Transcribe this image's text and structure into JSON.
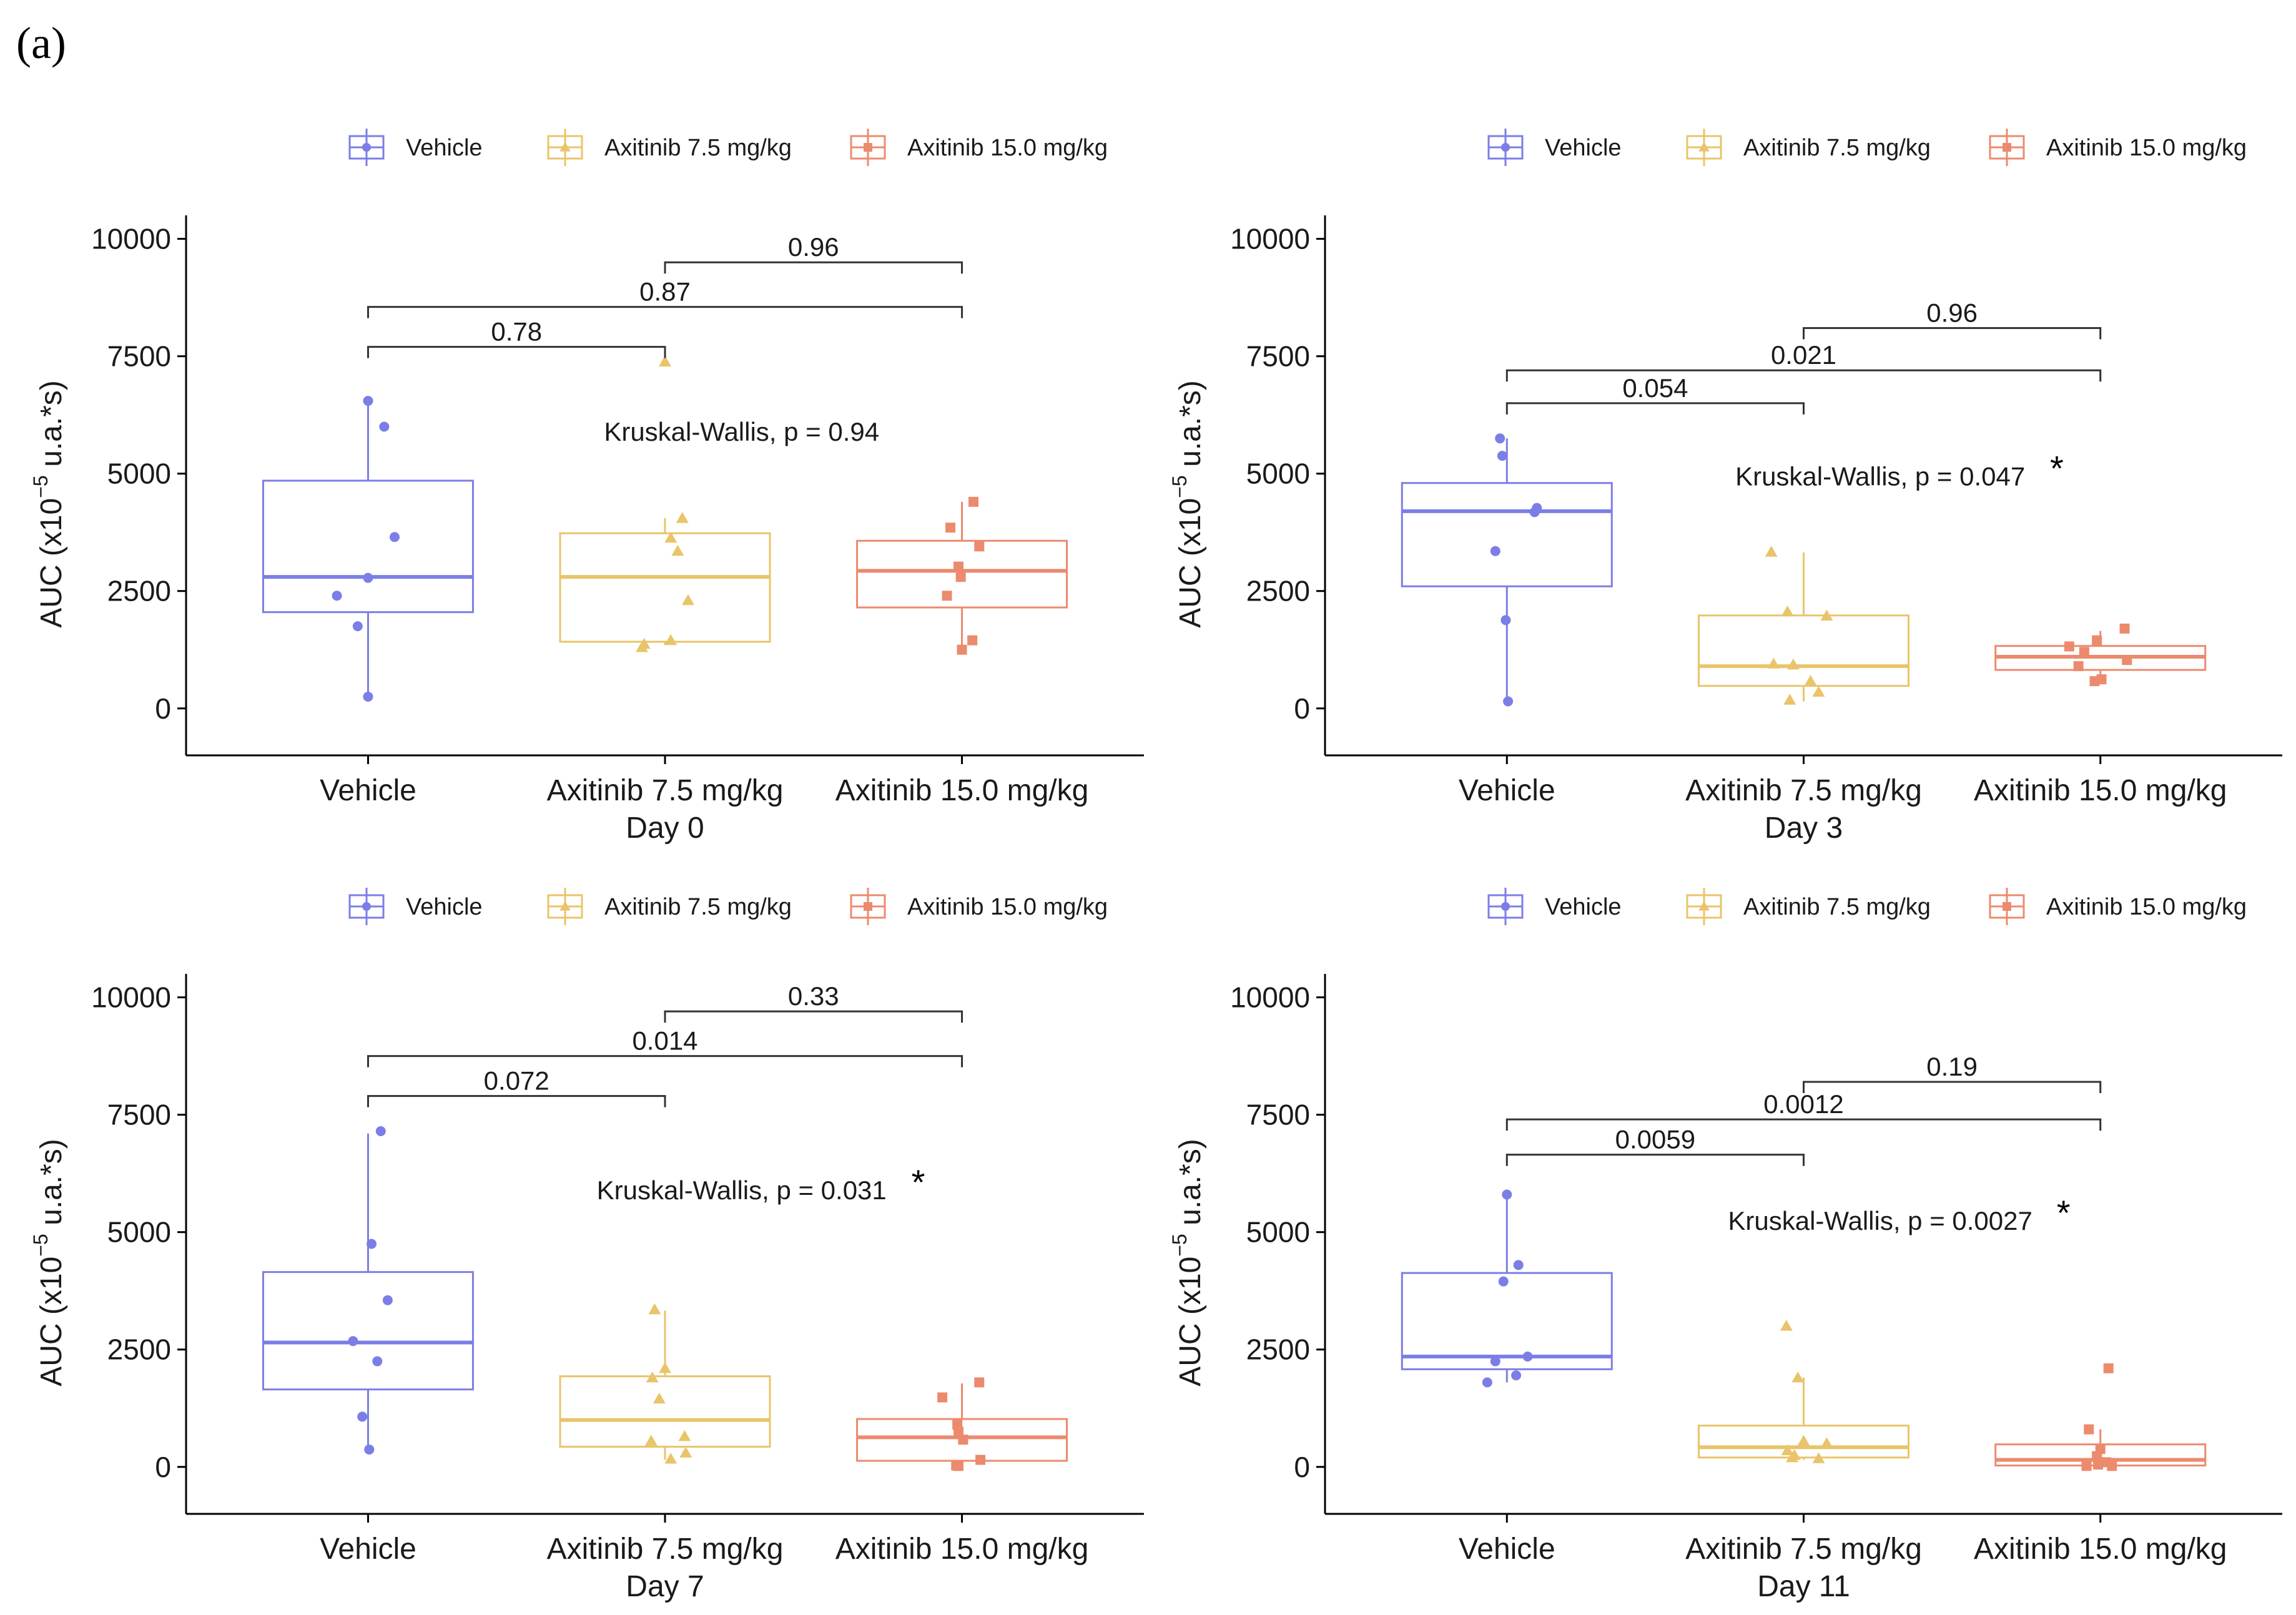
{
  "panel_label": "(a)",
  "legend": {
    "items": [
      {
        "label": "Vehicle",
        "color": "#7b7ee6",
        "shape": "circle"
      },
      {
        "label": "Axitinib 7.5 mg/kg",
        "color": "#e9c46a",
        "shape": "triangle"
      },
      {
        "label": "Axitinib 15.0 mg/kg",
        "color": "#ec8a6e",
        "shape": "square"
      }
    ]
  },
  "chart_data": [
    {
      "type": "boxplot",
      "title": "Day 0",
      "xlabel": "Day 0",
      "ylabel": "AUC (x10-5 u.a.*s)",
      "ylabel_base": "AUC (x10",
      "ylabel_exp": "−5",
      "ylabel_tail": " u.a.*s)",
      "ylim": [
        -1000,
        10500
      ],
      "yticks": [
        0,
        2500,
        5000,
        7500,
        10000
      ],
      "categories": [
        "Vehicle",
        "Axitinib 7.5 mg/kg",
        "Axitinib 15.0 mg/kg"
      ],
      "boxes": [
        {
          "q1": 2050,
          "median": 2800,
          "q3": 4850,
          "wmin": 250,
          "wmax": 6550
        },
        {
          "q1": 1420,
          "median": 2800,
          "q3": 3730,
          "wmin": 1350,
          "wmax": 4050
        },
        {
          "q1": 2150,
          "median": 2930,
          "q3": 3570,
          "wmin": 1250,
          "wmax": 4400
        }
      ],
      "points": [
        [
          [
            0.0,
            6550
          ],
          [
            0.14,
            6000
          ],
          [
            0.23,
            3650
          ],
          [
            0.0,
            2780
          ],
          [
            -0.27,
            2400
          ],
          [
            -0.09,
            1750
          ],
          [
            0.0,
            250
          ]
        ],
        [
          [
            0.0,
            7380
          ],
          [
            0.15,
            4050
          ],
          [
            0.05,
            3630
          ],
          [
            0.11,
            3350
          ],
          [
            0.2,
            2300
          ],
          [
            0.05,
            1450
          ],
          [
            -0.18,
            1370
          ],
          [
            -0.2,
            1300
          ]
        ],
        [
          [
            0.1,
            4400
          ],
          [
            -0.1,
            3850
          ],
          [
            0.15,
            3450
          ],
          [
            -0.03,
            3020
          ],
          [
            -0.01,
            2800
          ],
          [
            -0.13,
            2400
          ],
          [
            0.09,
            1450
          ],
          [
            0.0,
            1250
          ]
        ]
      ],
      "comparisons": [
        {
          "from": 0,
          "to": 1,
          "p": "0.78",
          "y": 7700
        },
        {
          "from": 0,
          "to": 2,
          "p": "0.87",
          "y": 8550
        },
        {
          "from": 1,
          "to": 2,
          "p": "0.96",
          "y": 9500
        }
      ],
      "kruskal": {
        "text": "Kruskal-Wallis, p = 0.94",
        "star": "",
        "y": 5700
      }
    },
    {
      "type": "boxplot",
      "title": "Day 3",
      "xlabel": "Day 3",
      "ylabel": "AUC (x10-5 u.a.*s)",
      "ylabel_base": "AUC (x10",
      "ylabel_exp": "−5",
      "ylabel_tail": " u.a.*s)",
      "ylim": [
        -1000,
        10500
      ],
      "yticks": [
        0,
        2500,
        5000,
        7500,
        10000
      ],
      "categories": [
        "Vehicle",
        "Axitinib 7.5 mg/kg",
        "Axitinib 15.0 mg/kg"
      ],
      "boxes": [
        {
          "q1": 2600,
          "median": 4200,
          "q3": 4800,
          "wmin": 150,
          "wmax": 5750
        },
        {
          "q1": 480,
          "median": 900,
          "q3": 1980,
          "wmin": 150,
          "wmax": 3320
        },
        {
          "q1": 820,
          "median": 1100,
          "q3": 1330,
          "wmin": 600,
          "wmax": 1650
        }
      ],
      "points": [
        [
          [
            -0.06,
            5750
          ],
          [
            -0.04,
            5380
          ],
          [
            0.26,
            4270
          ],
          [
            0.24,
            4180
          ],
          [
            -0.1,
            3350
          ],
          [
            -0.01,
            1880
          ],
          [
            0.01,
            150
          ]
        ],
        [
          [
            -0.28,
            3330
          ],
          [
            -0.14,
            2060
          ],
          [
            0.2,
            1970
          ],
          [
            -0.26,
            950
          ],
          [
            -0.09,
            930
          ],
          [
            0.06,
            580
          ],
          [
            0.13,
            350
          ],
          [
            -0.12,
            180
          ]
        ],
        [
          [
            0.21,
            1700
          ],
          [
            -0.03,
            1450
          ],
          [
            -0.27,
            1320
          ],
          [
            -0.14,
            1200
          ],
          [
            0.23,
            1030
          ],
          [
            -0.19,
            900
          ],
          [
            0.01,
            620
          ],
          [
            -0.05,
            580
          ]
        ]
      ],
      "comparisons": [
        {
          "from": 0,
          "to": 1,
          "p": "0.054",
          "y": 6500
        },
        {
          "from": 0,
          "to": 2,
          "p": "0.021",
          "y": 7200
        },
        {
          "from": 1,
          "to": 2,
          "p": "0.96",
          "y": 8100
        }
      ],
      "kruskal": {
        "text": "Kruskal-Wallis, p = 0.047",
        "star": "*",
        "y": 4750
      }
    },
    {
      "type": "boxplot",
      "title": "Day 7",
      "xlabel": "Day 7",
      "ylabel": "AUC (x10-5 u.a.*s)",
      "ylabel_base": "AUC (x10",
      "ylabel_exp": "−5",
      "ylabel_tail": " u.a.*s)",
      "ylim": [
        -1000,
        10500
      ],
      "yticks": [
        0,
        2500,
        5000,
        7500,
        10000
      ],
      "categories": [
        "Vehicle",
        "Axitinib 7.5 mg/kg",
        "Axitinib 15.0 mg/kg"
      ],
      "boxes": [
        {
          "q1": 1650,
          "median": 2650,
          "q3": 4150,
          "wmin": 350,
          "wmax": 7100
        },
        {
          "q1": 430,
          "median": 1000,
          "q3": 1930,
          "wmin": 150,
          "wmax": 3330
        },
        {
          "q1": 130,
          "median": 630,
          "q3": 1020,
          "wmin": 0,
          "wmax": 1780
        }
      ],
      "points": [
        [
          [
            0.11,
            7150
          ],
          [
            0.03,
            4750
          ],
          [
            0.17,
            3550
          ],
          [
            -0.13,
            2680
          ],
          [
            0.08,
            2250
          ],
          [
            -0.05,
            1070
          ],
          [
            0.01,
            370
          ]
        ],
        [
          [
            -0.09,
            3350
          ],
          [
            0.0,
            2100
          ],
          [
            -0.11,
            1900
          ],
          [
            -0.05,
            1450
          ],
          [
            0.17,
            650
          ],
          [
            -0.12,
            550
          ],
          [
            0.18,
            300
          ],
          [
            0.05,
            170
          ]
        ],
        [
          [
            0.15,
            1800
          ],
          [
            -0.17,
            1480
          ],
          [
            -0.04,
            900
          ],
          [
            -0.03,
            750
          ],
          [
            0.01,
            580
          ],
          [
            0.16,
            150
          ],
          [
            -0.05,
            30
          ],
          [
            -0.03,
            20
          ]
        ]
      ],
      "comparisons": [
        {
          "from": 0,
          "to": 1,
          "p": "0.072",
          "y": 7900
        },
        {
          "from": 0,
          "to": 2,
          "p": "0.014",
          "y": 8750
        },
        {
          "from": 1,
          "to": 2,
          "p": "0.33",
          "y": 9700
        }
      ],
      "kruskal": {
        "text": "Kruskal-Wallis, p = 0.031",
        "star": "*",
        "y": 5700
      }
    },
    {
      "type": "boxplot",
      "title": "Day 11",
      "xlabel": "Day 11",
      "ylabel": "AUC (x10-5 u.a.*s)",
      "ylabel_base": "AUC (x10",
      "ylabel_exp": "−5",
      "ylabel_tail": " u.a.*s)",
      "ylim": [
        -1000,
        10500
      ],
      "yticks": [
        0,
        2500,
        5000,
        7500,
        10000
      ],
      "categories": [
        "Vehicle",
        "Axitinib 7.5 mg/kg",
        "Axitinib 15.0 mg/kg"
      ],
      "boxes": [
        {
          "q1": 2080,
          "median": 2350,
          "q3": 4130,
          "wmin": 1800,
          "wmax": 5800
        },
        {
          "q1": 200,
          "median": 420,
          "q3": 880,
          "wmin": 150,
          "wmax": 1900
        },
        {
          "q1": 30,
          "median": 150,
          "q3": 480,
          "wmin": 0,
          "wmax": 800
        }
      ],
      "points": [
        [
          [
            0.0,
            5800
          ],
          [
            0.1,
            4300
          ],
          [
            -0.03,
            3950
          ],
          [
            0.18,
            2350
          ],
          [
            -0.1,
            2250
          ],
          [
            0.08,
            1950
          ],
          [
            -0.17,
            1800
          ]
        ],
        [
          [
            -0.15,
            3000
          ],
          [
            -0.05,
            1900
          ],
          [
            0.0,
            550
          ],
          [
            0.2,
            500
          ],
          [
            -0.14,
            350
          ],
          [
            0.13,
            180
          ],
          [
            -0.1,
            200
          ],
          [
            -0.08,
            250
          ]
        ],
        [
          [
            0.07,
            2100
          ],
          [
            -0.1,
            800
          ],
          [
            0.0,
            380
          ],
          [
            -0.03,
            230
          ],
          [
            0.05,
            100
          ],
          [
            -0.12,
            20
          ],
          [
            0.1,
            20
          ],
          [
            -0.02,
            50
          ]
        ]
      ],
      "comparisons": [
        {
          "from": 0,
          "to": 1,
          "p": "0.0059",
          "y": 6650
        },
        {
          "from": 0,
          "to": 2,
          "p": "0.0012",
          "y": 7400
        },
        {
          "from": 1,
          "to": 2,
          "p": "0.19",
          "y": 8200
        }
      ],
      "kruskal": {
        "text": "Kruskal-Wallis, p = 0.0027",
        "star": "*",
        "y": 5050
      }
    }
  ]
}
